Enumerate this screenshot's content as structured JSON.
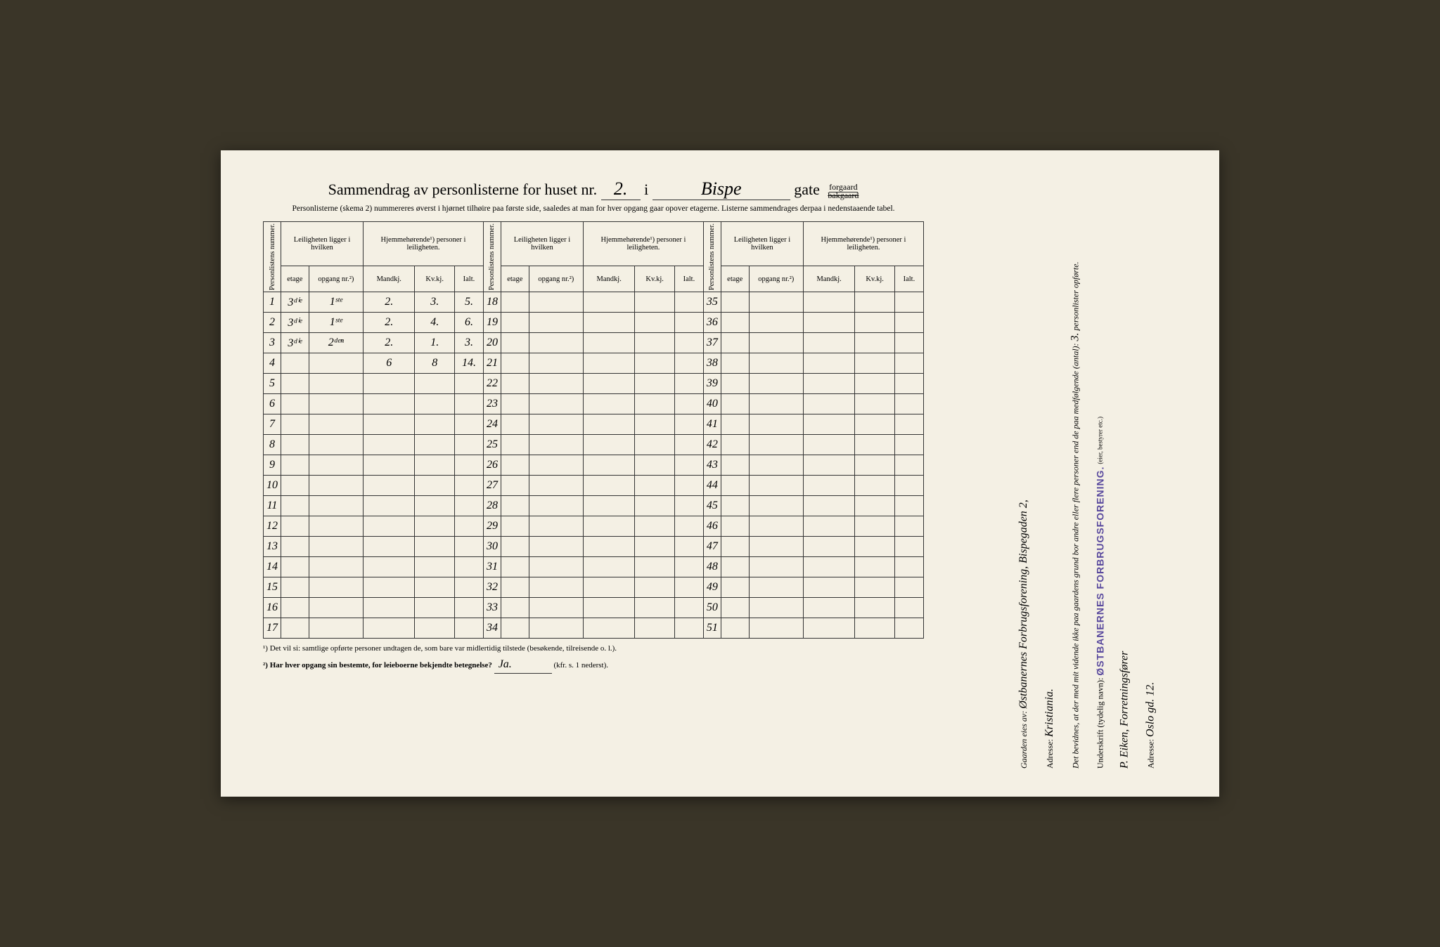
{
  "title": {
    "prefix": "Sammendrag av personlisterne for huset nr.",
    "house_nr": "2.",
    "i": "i",
    "street": "Bispe",
    "gate": "gate",
    "forgaard": "forgaard",
    "bakgaard": "bakgaard"
  },
  "subtitle": "Personlisterne (skema 2) nummereres øverst i hjørnet tilhøire paa første side, saaledes at man for hver opgang gaar opover etagerne. Listerne sammendrages derpaa i nedenstaaende tabel.",
  "headers": {
    "personlistens": "Personlistens nummer.",
    "leiligheten": "Leiligheten ligger i hvilken",
    "hjemme": "Hjemmehørende¹) personer i leiligheten.",
    "etage": "etage",
    "opgang": "opgang nr.²)",
    "mandkj": "Mandkj.",
    "kvkj": "Kv.kj.",
    "ialt": "Ialt."
  },
  "rows_a": [
    {
      "n": "1",
      "etage": "3ᵈⁱᵉ",
      "opg": "1ˢᵗᵉ",
      "m": "2.",
      "k": "3.",
      "i": "5."
    },
    {
      "n": "2",
      "etage": "3ᵈⁱᵉ",
      "opg": "1ˢᵗᵉ",
      "m": "2.",
      "k": "4.",
      "i": "6."
    },
    {
      "n": "3",
      "etage": "3ᵈⁱᵉ",
      "opg": "2ᵈᵉⁿ",
      "m": "2.",
      "k": "1.",
      "i": "3."
    },
    {
      "n": "4",
      "etage": "",
      "opg": "",
      "m": "6",
      "k": "8",
      "i": "14."
    },
    {
      "n": "5"
    },
    {
      "n": "6"
    },
    {
      "n": "7"
    },
    {
      "n": "8"
    },
    {
      "n": "9"
    },
    {
      "n": "10"
    },
    {
      "n": "11"
    },
    {
      "n": "12"
    },
    {
      "n": "13"
    },
    {
      "n": "14"
    },
    {
      "n": "15"
    },
    {
      "n": "16"
    },
    {
      "n": "17"
    }
  ],
  "rows_b": [
    {
      "n": "18"
    },
    {
      "n": "19"
    },
    {
      "n": "20"
    },
    {
      "n": "21"
    },
    {
      "n": "22"
    },
    {
      "n": "23"
    },
    {
      "n": "24"
    },
    {
      "n": "25"
    },
    {
      "n": "26"
    },
    {
      "n": "27"
    },
    {
      "n": "28"
    },
    {
      "n": "29"
    },
    {
      "n": "30"
    },
    {
      "n": "31"
    },
    {
      "n": "32"
    },
    {
      "n": "33"
    },
    {
      "n": "34"
    }
  ],
  "rows_c": [
    {
      "n": "35"
    },
    {
      "n": "36"
    },
    {
      "n": "37"
    },
    {
      "n": "38"
    },
    {
      "n": "39"
    },
    {
      "n": "40"
    },
    {
      "n": "41"
    },
    {
      "n": "42"
    },
    {
      "n": "43"
    },
    {
      "n": "44"
    },
    {
      "n": "45"
    },
    {
      "n": "46"
    },
    {
      "n": "47"
    },
    {
      "n": "48"
    },
    {
      "n": "49"
    },
    {
      "n": "50"
    },
    {
      "n": "51"
    }
  ],
  "footnotes": {
    "f1": "¹) Det vil si: samtlige opførte personer undtagen de, som bare var midlertidig tilstede (besøkende, tilreisende o. l.).",
    "f2_label": "²) Har hver opgang sin bestemte, for leieboerne bekjendte betegnelse?",
    "f2_answer": "Ja.",
    "f2_suffix": "(kfr. s. 1 nederst)."
  },
  "right": {
    "gaarden_label": "Gaarden eies av:",
    "gaarden_value": "Østbanernes Forbrugsforening, Bispegaden 2,",
    "adresse_label": "Adresse:",
    "adresse1": "Kristiania.",
    "bevidnes": "Det bevidnes, at der med mit vidende ikke paa gaardens grund bor andre eller flere personer end de paa medfølgende (antal):",
    "antal": "3.",
    "personlister": "personlister opførte.",
    "underskrift_label": "Underskrift (tydelig navn):",
    "underskrift_small": "(eier, bestyrer etc.)",
    "stamp": "ØSTBANERNES FORBRUGSFORENING.",
    "sign": "P. Eiken, Forretningsfører",
    "adresse2": "Oslo gd. 12."
  },
  "colors": {
    "paper": "#f4f0e4",
    "ink": "#2a2a2a",
    "handwriting": "#3a3a3a",
    "stamp": "#5a4a9e",
    "background": "#3a3528"
  }
}
